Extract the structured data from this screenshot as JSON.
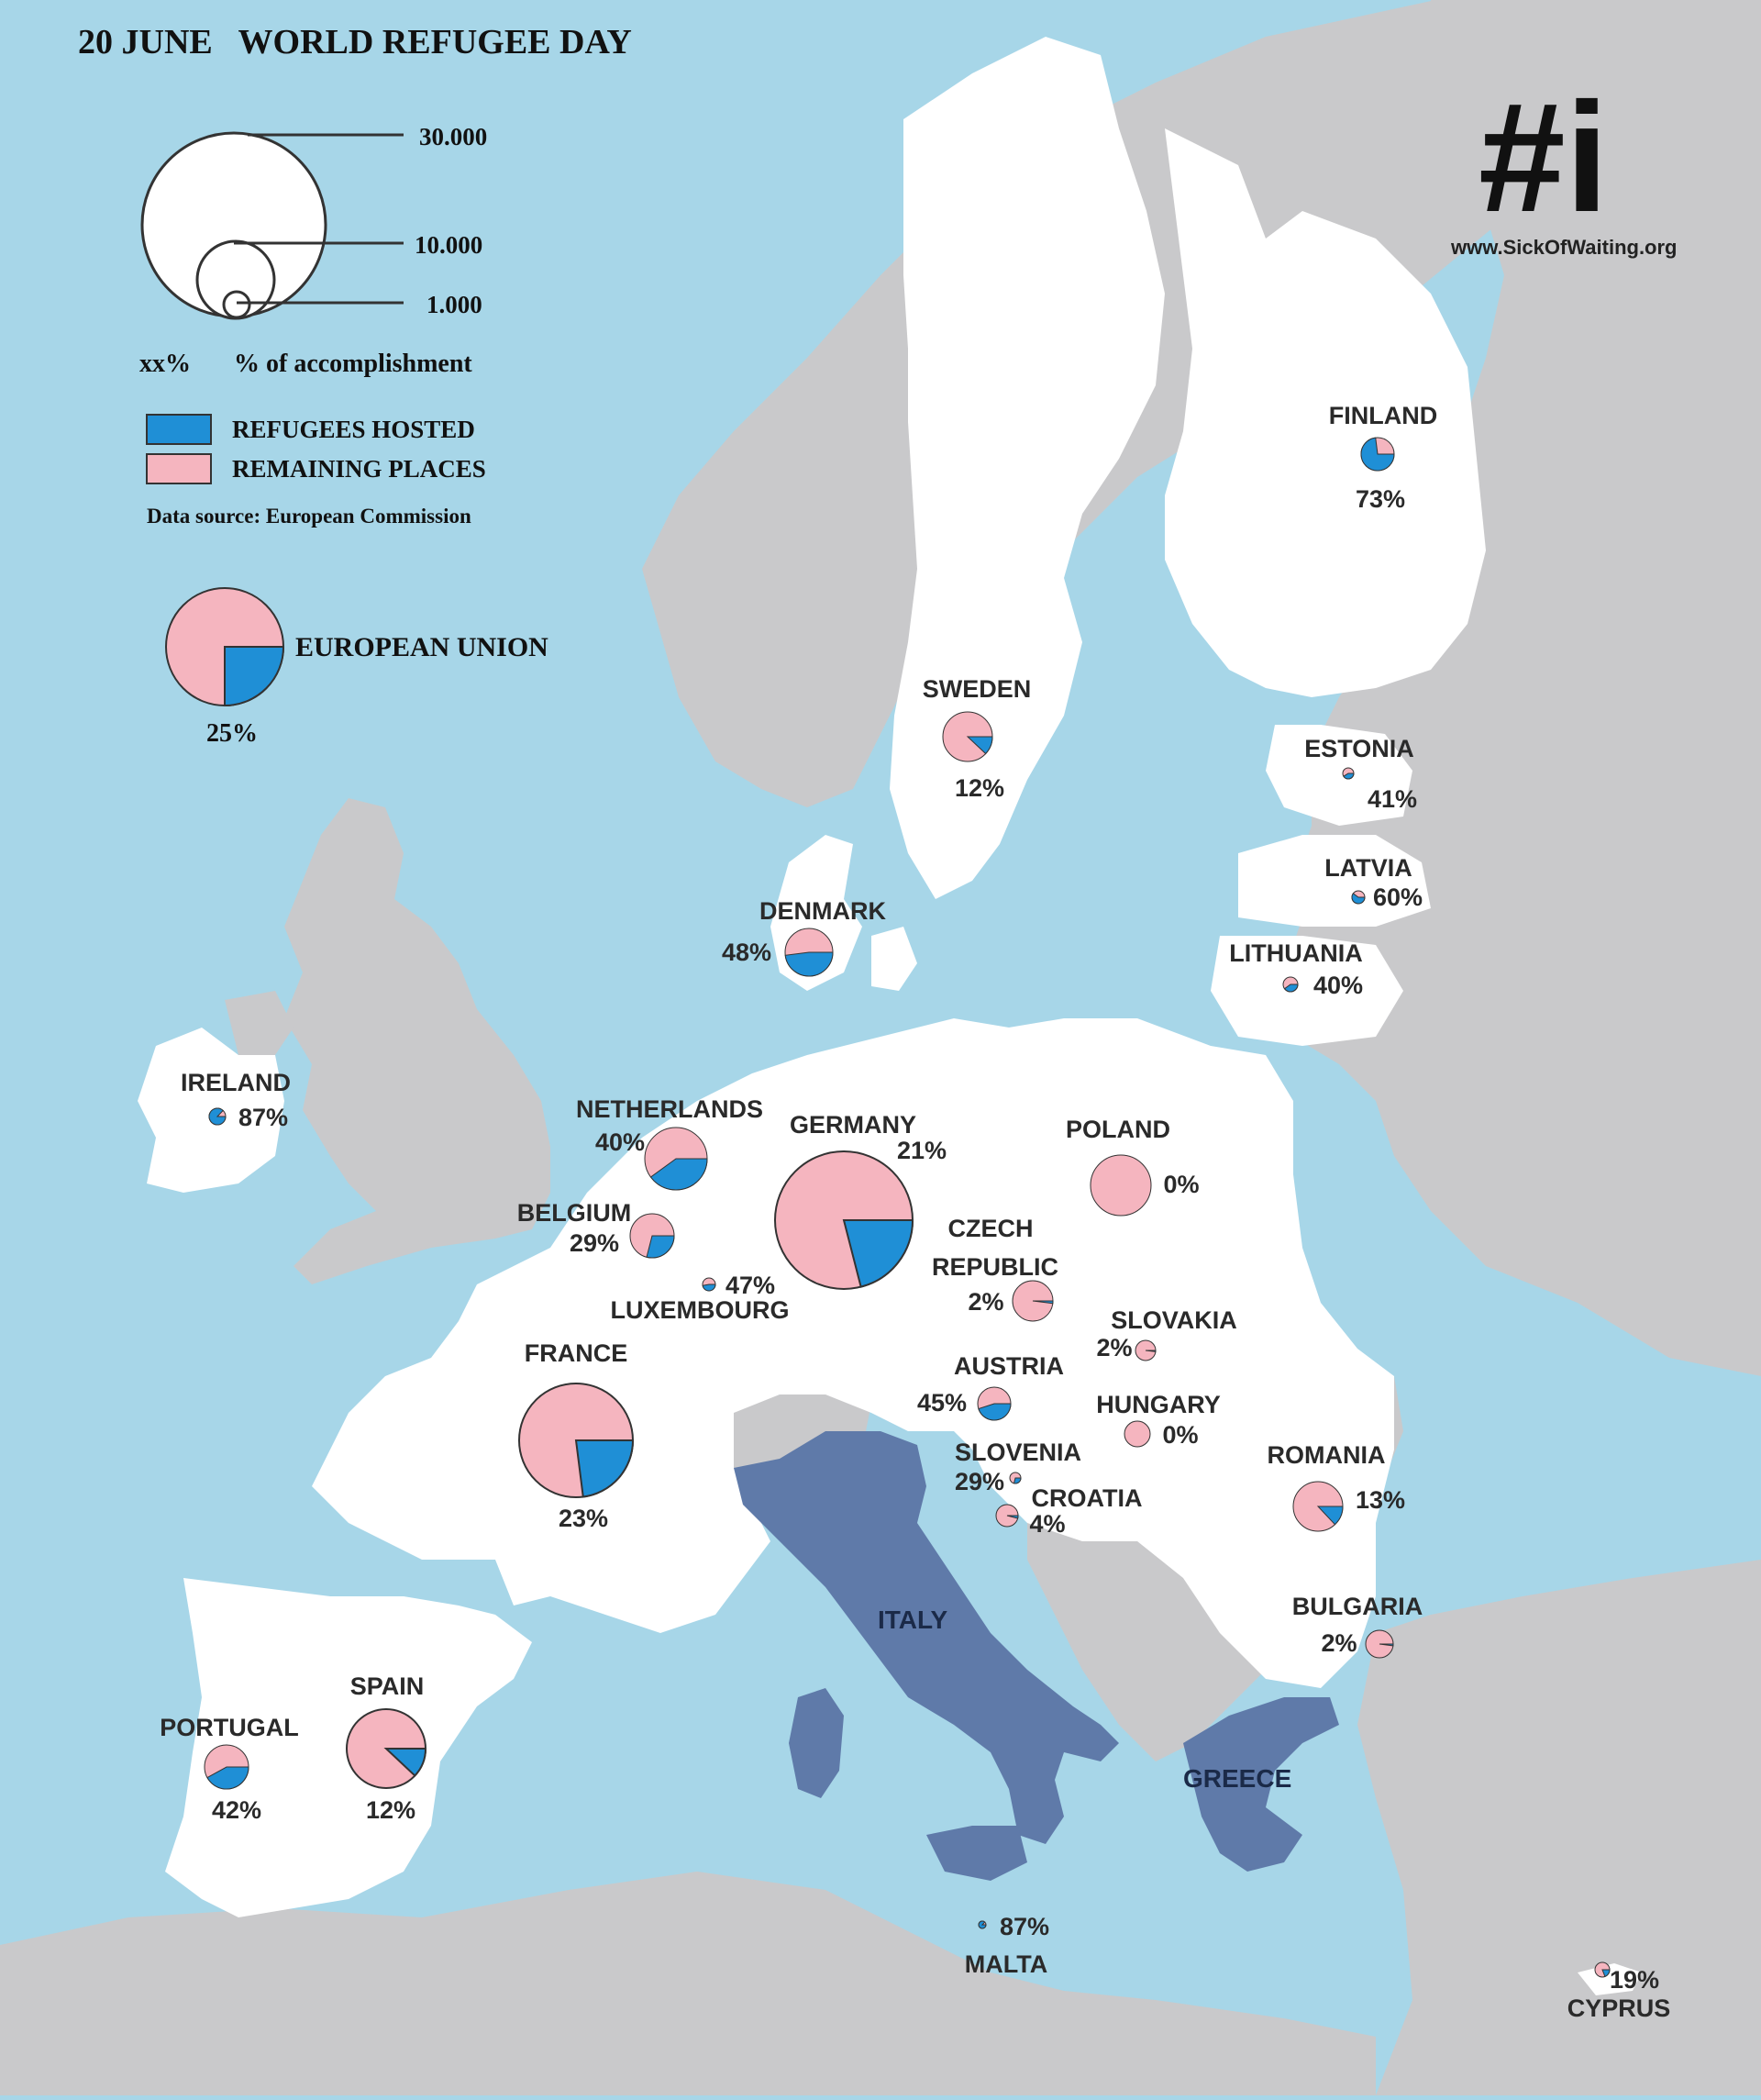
{
  "title": "20 JUNE   WORLD REFUGEE DAY",
  "website": "www.SickOfWaiting.org",
  "logo_text": "#i",
  "legend": {
    "sizes": [
      "30.000",
      "10.000",
      "1.000"
    ],
    "percent_symbol": "xx%",
    "percent_label": "% of accomplishment",
    "hosted_label": "REFUGEES HOSTED",
    "remaining_label": "REMAINING PLACES",
    "source": "Data source: European Commission"
  },
  "colors": {
    "sea": "#a7d6e8",
    "eu_land": "#ffffff",
    "other_land": "#c9c9cb",
    "italy_greece": "#5f7aa9",
    "hosted": "#1f8fd6",
    "remaining": "#f5b5bf",
    "text": "#2a2a2a"
  },
  "eu": {
    "label": "EUROPEAN UNION",
    "pct": "25%"
  },
  "sea_labels": {
    "italy": "ITALY",
    "greece": "GREECE"
  },
  "chart_data": {
    "type": "pie",
    "series": [
      {
        "name": "REFUGEES HOSTED"
      },
      {
        "name": "REMAINING PLACES"
      }
    ],
    "countries": [
      {
        "key": "finland",
        "name": "FINLAND",
        "pct": "73%",
        "share": 0.73
      },
      {
        "key": "sweden",
        "name": "SWEDEN",
        "pct": "12%",
        "share": 0.12
      },
      {
        "key": "estonia",
        "name": "ESTONIA",
        "pct": "41%",
        "share": 0.41
      },
      {
        "key": "latvia",
        "name": "LATVIA",
        "pct": "60%",
        "share": 0.6
      },
      {
        "key": "lithuania",
        "name": "LITHUANIA",
        "pct": "40%",
        "share": 0.4
      },
      {
        "key": "denmark",
        "name": "DENMARK",
        "pct": "48%",
        "share": 0.48
      },
      {
        "key": "ireland",
        "name": "IRELAND",
        "pct": "87%",
        "share": 0.87
      },
      {
        "key": "netherlands",
        "name": "NETHERLANDS",
        "pct": "40%",
        "share": 0.4
      },
      {
        "key": "germany",
        "name": "GERMANY",
        "pct": "21%",
        "share": 0.21
      },
      {
        "key": "poland",
        "name": "POLAND",
        "pct": "0%",
        "share": 0.0
      },
      {
        "key": "belgium",
        "name": "BELGIUM",
        "pct": "29%",
        "share": 0.29
      },
      {
        "key": "luxembourg",
        "name": "LUXEMBOURG",
        "pct": "47%",
        "share": 0.47
      },
      {
        "key": "czech",
        "name": "CZECH REPUBLIC",
        "name_lines": [
          "CZECH",
          "REPUBLIC"
        ],
        "pct": "2%",
        "share": 0.02
      },
      {
        "key": "slovakia",
        "name": "SLOVAKIA",
        "pct": "2%",
        "share": 0.02
      },
      {
        "key": "france",
        "name": "FRANCE",
        "pct": "23%",
        "share": 0.23
      },
      {
        "key": "austria",
        "name": "AUSTRIA",
        "pct": "45%",
        "share": 0.45
      },
      {
        "key": "hungary",
        "name": "HUNGARY",
        "pct": "0%",
        "share": 0.0
      },
      {
        "key": "slovenia",
        "name": "SLOVENIA",
        "pct": "29%",
        "share": 0.29
      },
      {
        "key": "croatia",
        "name": "CROATIA",
        "pct": "4%",
        "share": 0.04
      },
      {
        "key": "romania",
        "name": "ROMANIA",
        "pct": "13%",
        "share": 0.13
      },
      {
        "key": "bulgaria",
        "name": "BULGARIA",
        "pct": "2%",
        "share": 0.02
      },
      {
        "key": "portugal",
        "name": "PORTUGAL",
        "pct": "42%",
        "share": 0.42
      },
      {
        "key": "spain",
        "name": "SPAIN",
        "pct": "12%",
        "share": 0.12
      },
      {
        "key": "malta",
        "name": "MALTA",
        "pct": "87%",
        "share": 0.87
      },
      {
        "key": "cyprus",
        "name": "CYPRUS",
        "pct": "19%",
        "share": 0.19
      },
      {
        "key": "eu",
        "name": "EUROPEAN UNION",
        "pct": "25%",
        "share": 0.25
      }
    ]
  }
}
